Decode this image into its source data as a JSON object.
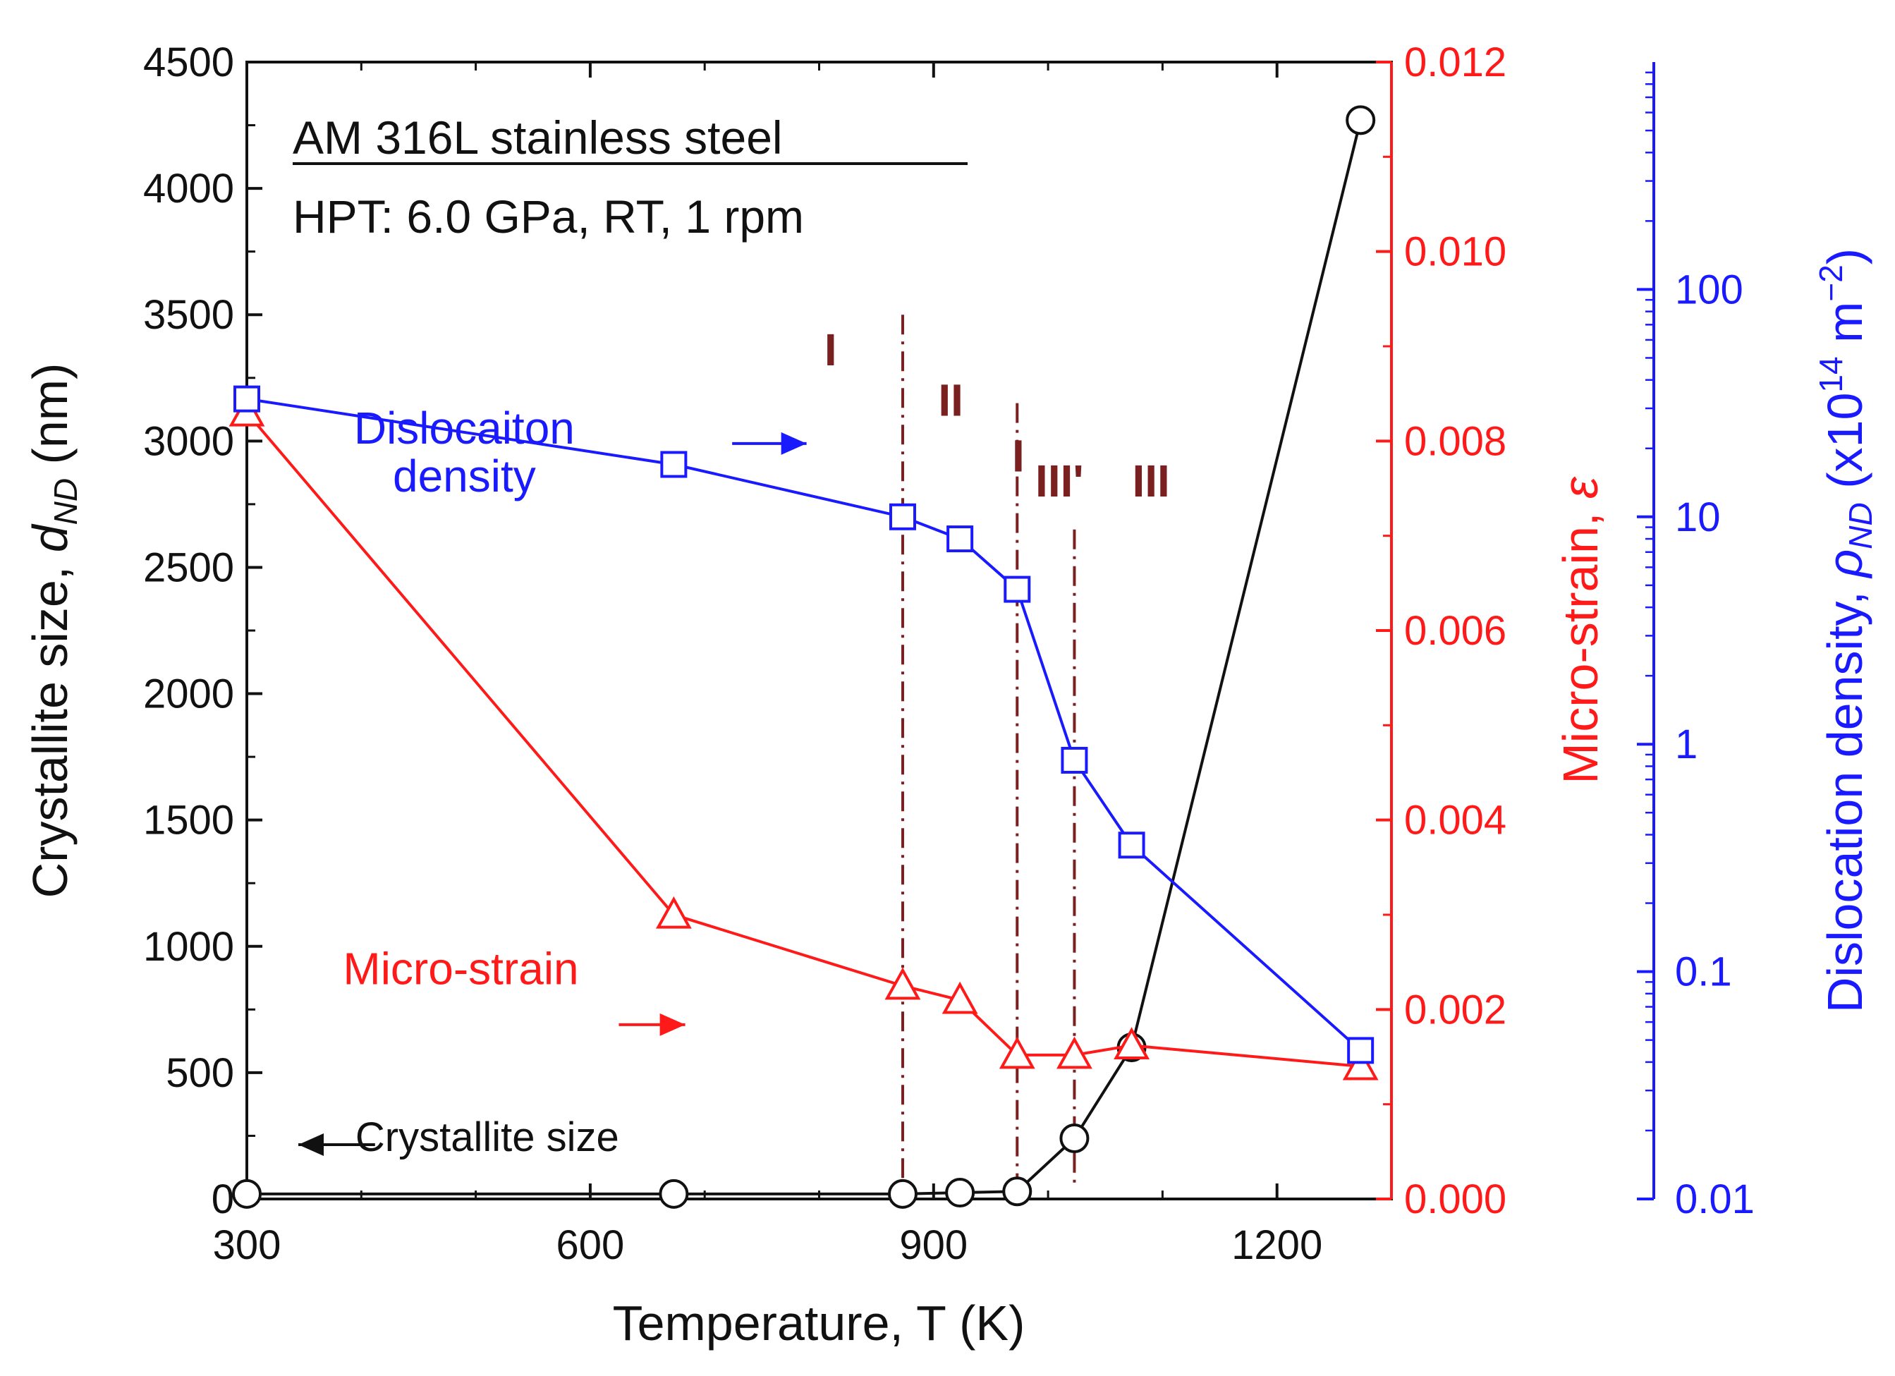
{
  "chart_data": {
    "type": "line",
    "title_line1": "AM 316L stainless steel",
    "title_line2": "HPT: 6.0 GPa, RT, 1 rpm",
    "xlabel": "Temperature, T (K)",
    "xlim": [
      300,
      1300
    ],
    "xticks": [
      300,
      600,
      900,
      1200
    ],
    "left_axis": {
      "label_main": "Crystallite size, ",
      "label_symbol": "d",
      "label_sub": "ND",
      "label_unit": " (nm)",
      "lim": [
        0,
        4500
      ],
      "ticks": [
        0,
        500,
        1000,
        1500,
        2000,
        2500,
        3000,
        3500,
        4000,
        4500
      ],
      "color": "#111111"
    },
    "right_axis_1": {
      "label_main": "Micro-strain, ",
      "label_symbol": "ε",
      "lim": [
        0,
        0.012
      ],
      "ticks": [
        "0.000",
        "0.002",
        "0.004",
        "0.006",
        "0.008",
        "0.010",
        "0.012"
      ],
      "color": "#ff1a1a"
    },
    "right_axis_2": {
      "label_main": "Dislocation density, ",
      "label_symbol": "ρ",
      "label_sub": "ND",
      "label_unit_pre": " (x10",
      "label_sup": "14",
      "label_unit_mid": " m",
      "label_sup2": "−2",
      "label_unit_post": ")",
      "scale": "log",
      "lim": [
        0.01,
        1000
      ],
      "ticks": [
        "0.01",
        "0.1",
        "1",
        "10",
        "100"
      ],
      "color": "#1a1aff"
    },
    "series": [
      {
        "name": "Crystallite size",
        "axis": "left",
        "color": "#111111",
        "marker": "circle",
        "x": [
          300,
          673,
          873,
          923,
          973,
          1023,
          1073,
          1273
        ],
        "values": [
          20,
          20,
          20,
          25,
          30,
          240,
          600,
          4270
        ]
      },
      {
        "name": "Micro-strain",
        "axis": "right_1",
        "color": "#ff1a1a",
        "marker": "triangle",
        "x": [
          300,
          673,
          873,
          923,
          973,
          1023,
          1073,
          1273
        ],
        "values": [
          0.0083,
          0.003,
          0.00225,
          0.0021,
          0.00152,
          0.00152,
          0.00162,
          0.0014
        ]
      },
      {
        "name": "Dislocaiton density",
        "axis": "right_2",
        "color": "#1a1aff",
        "marker": "square",
        "x": [
          300,
          673,
          873,
          923,
          973,
          1023,
          1073,
          1273
        ],
        "values": [
          33,
          17,
          10,
          8,
          4.8,
          0.85,
          0.36,
          0.045
        ]
      }
    ],
    "region_boundaries": [
      {
        "x": 873
      },
      {
        "x": 973
      },
      {
        "x": 1023
      }
    ],
    "region_labels": [
      {
        "text": "I",
        "x": 810,
        "y_left": 3300
      },
      {
        "text": "II",
        "x": 915,
        "y_left": 3100
      },
      {
        "text": "I",
        "x": 974,
        "y_left": 2880
      },
      {
        "text": "III'",
        "x": 1010,
        "y_left": 2780
      },
      {
        "text": "III",
        "x": 1090,
        "y_left": 2780
      }
    ],
    "annotations": [
      {
        "id": "dd1",
        "text": "Dislocaiton",
        "x": 490,
        "y_left": 2990,
        "color": "blue"
      },
      {
        "id": "dd2",
        "text": "density",
        "x": 490,
        "y_left": 2800,
        "color": "blue"
      },
      {
        "id": "ms",
        "text": "Micro-strain",
        "x": 487,
        "y_left": 850,
        "color": "red"
      },
      {
        "id": "cs",
        "text": "Crystallite size",
        "x": 510,
        "y_left": 190,
        "color": "black"
      }
    ],
    "arrows": [
      {
        "color": "blue",
        "x1": 724,
        "x2": 789,
        "y_left": 2990
      },
      {
        "color": "red",
        "x1": 625,
        "x2": 683,
        "y_left": 690
      },
      {
        "color": "black",
        "x1": 412,
        "x2": 345,
        "y_left": 215
      }
    ]
  }
}
